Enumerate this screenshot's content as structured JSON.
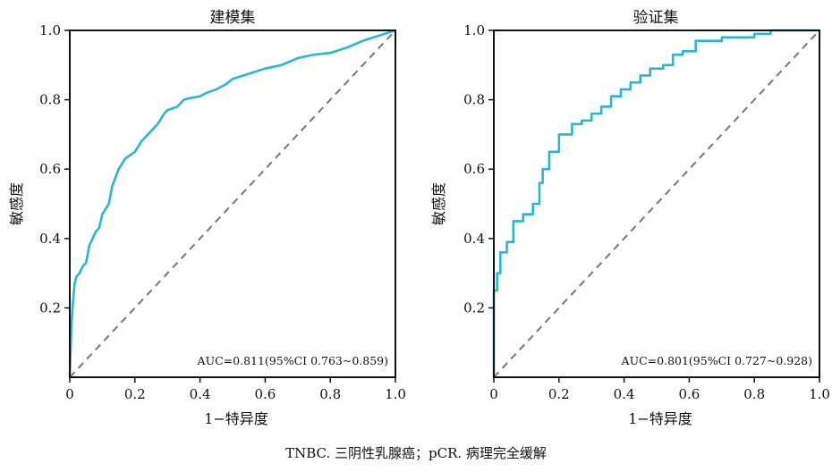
{
  "caption": "TNBC. 三阴性乳腺癌；pCR. 病理完全缓解",
  "chart_data": [
    {
      "type": "line",
      "title": "建模集",
      "xlabel": "1−特异度",
      "ylabel": "敏感度",
      "xlim": [
        0,
        1
      ],
      "ylim": [
        0,
        1
      ],
      "xticks": [
        0,
        0.2,
        0.4,
        0.6,
        0.8,
        1.0
      ],
      "xtick_labels": [
        "0",
        "0.2",
        "0.4",
        "0.6",
        "0.8",
        "1.0"
      ],
      "yticks": [
        0.2,
        0.4,
        0.6,
        0.8,
        1.0
      ],
      "ytick_labels": [
        "0.2",
        "0.4",
        "0.6",
        "0.8",
        "1.0"
      ],
      "annotation": "AUC=0.811(95%CI 0.763~0.859)",
      "roc_color": "#29B6D6",
      "reference_color": "#777777",
      "roc": {
        "x": [
          0,
          0.005,
          0.01,
          0.015,
          0.02,
          0.03,
          0.04,
          0.05,
          0.06,
          0.08,
          0.09,
          0.1,
          0.12,
          0.13,
          0.15,
          0.17,
          0.2,
          0.22,
          0.25,
          0.27,
          0.29,
          0.3,
          0.33,
          0.35,
          0.37,
          0.4,
          0.42,
          0.45,
          0.48,
          0.5,
          0.55,
          0.6,
          0.65,
          0.7,
          0.75,
          0.8,
          0.85,
          0.9,
          0.95,
          1.0
        ],
        "y": [
          0,
          0.15,
          0.22,
          0.27,
          0.29,
          0.3,
          0.32,
          0.33,
          0.38,
          0.42,
          0.43,
          0.47,
          0.5,
          0.55,
          0.6,
          0.63,
          0.65,
          0.68,
          0.71,
          0.73,
          0.76,
          0.77,
          0.78,
          0.8,
          0.805,
          0.81,
          0.82,
          0.83,
          0.845,
          0.86,
          0.875,
          0.89,
          0.9,
          0.92,
          0.93,
          0.935,
          0.95,
          0.97,
          0.985,
          1.0
        ]
      }
    },
    {
      "type": "line",
      "title": "验证集",
      "xlabel": "1−特异度",
      "ylabel": "敏感度",
      "xlim": [
        0,
        1
      ],
      "ylim": [
        0,
        1
      ],
      "xticks": [
        0,
        0.2,
        0.4,
        0.6,
        0.8,
        1.0
      ],
      "xtick_labels": [
        "0",
        "0.2",
        "0.4",
        "0.6",
        "0.8",
        "1.0"
      ],
      "yticks": [
        0.2,
        0.4,
        0.6,
        0.8,
        1.0
      ],
      "ytick_labels": [
        "0.2",
        "0.4",
        "0.6",
        "0.8",
        "1.0"
      ],
      "annotation": "AUC=0.801(95%CI 0.727~0.928)",
      "roc_color": "#29B6D6",
      "reference_color": "#777777",
      "roc": {
        "x": [
          0,
          0,
          0.01,
          0.01,
          0.02,
          0.02,
          0.04,
          0.04,
          0.06,
          0.06,
          0.09,
          0.09,
          0.12,
          0.12,
          0.14,
          0.14,
          0.15,
          0.15,
          0.17,
          0.17,
          0.2,
          0.2,
          0.24,
          0.24,
          0.27,
          0.27,
          0.3,
          0.3,
          0.33,
          0.33,
          0.36,
          0.36,
          0.39,
          0.39,
          0.42,
          0.42,
          0.45,
          0.45,
          0.48,
          0.48,
          0.52,
          0.52,
          0.55,
          0.55,
          0.58,
          0.58,
          0.62,
          0.62,
          0.7,
          0.7,
          0.8,
          0.8,
          0.85,
          0.85,
          0.9,
          1.0
        ],
        "y": [
          0,
          0.25,
          0.25,
          0.3,
          0.3,
          0.36,
          0.36,
          0.39,
          0.39,
          0.45,
          0.45,
          0.47,
          0.47,
          0.5,
          0.5,
          0.56,
          0.56,
          0.6,
          0.6,
          0.65,
          0.65,
          0.7,
          0.7,
          0.73,
          0.73,
          0.74,
          0.74,
          0.76,
          0.76,
          0.78,
          0.78,
          0.81,
          0.81,
          0.83,
          0.83,
          0.85,
          0.85,
          0.87,
          0.87,
          0.89,
          0.89,
          0.9,
          0.9,
          0.93,
          0.93,
          0.94,
          0.94,
          0.97,
          0.97,
          0.98,
          0.98,
          0.99,
          0.99,
          1.0,
          1.0,
          1.0
        ]
      }
    }
  ]
}
